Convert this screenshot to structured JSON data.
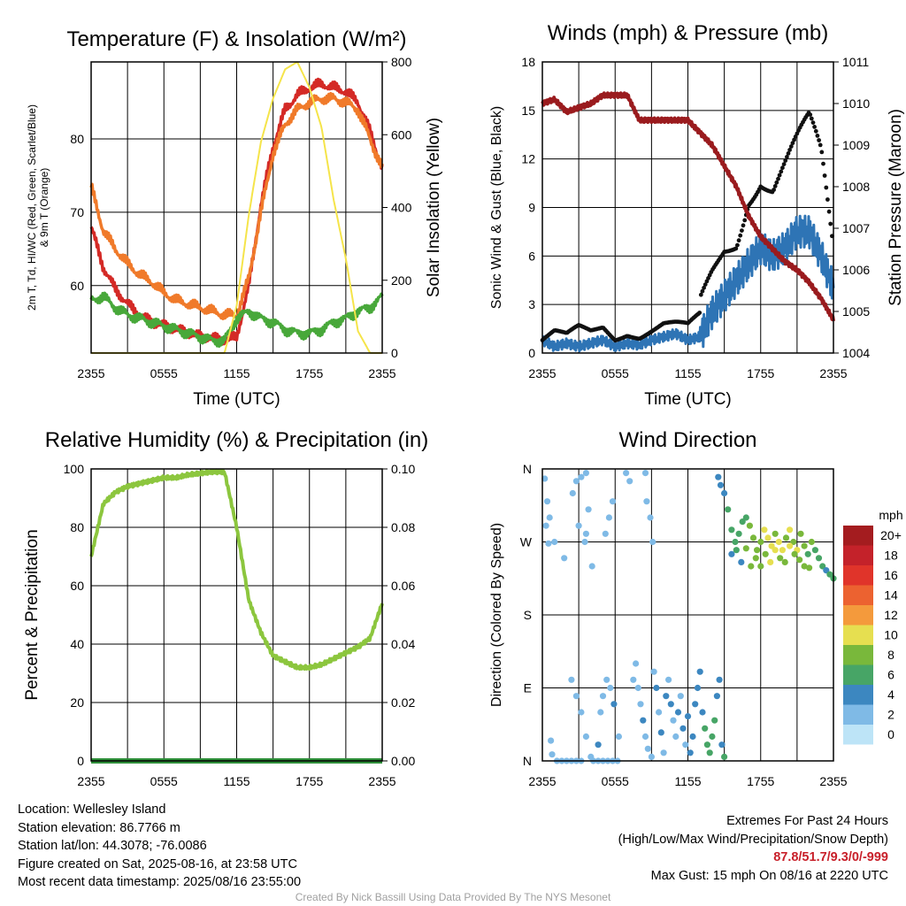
{
  "chart_data": [
    {
      "type": "line",
      "title": "Temperature (F) & Insolation (W/m²)",
      "xlabel": "Time (UTC)",
      "ylabel_left": "2m T, Td, HI/WC (Red, Green, Scarlet/Blue) & 9m T (Orange)",
      "ylabel_right": "Solar Insolation (Yellow)",
      "x_ticks": [
        "2355",
        "0555",
        "1155",
        "1755",
        "2355"
      ],
      "ylim_left": [
        50.8,
        90.5
      ],
      "yticks_left": [
        60,
        70,
        80
      ],
      "ylim_right": [
        0,
        800
      ],
      "yticks_right": [
        0,
        200,
        400,
        600,
        800
      ],
      "grid": true,
      "x_hours": [
        0,
        1,
        2,
        3,
        4,
        5,
        6,
        7,
        8,
        9,
        10,
        11,
        12,
        13,
        14,
        15,
        16,
        17,
        18,
        19,
        20,
        21,
        22,
        23,
        24
      ],
      "series": [
        {
          "color": "#d42a26",
          "axis": "left",
          "values": [
            68,
            62.5,
            59.5,
            57.5,
            56,
            55,
            54.5,
            54,
            53.5,
            53,
            52.8,
            52.5,
            53,
            60,
            71,
            79,
            84,
            86,
            87,
            87.5,
            87,
            86.5,
            85,
            81,
            76
          ]
        },
        {
          "color": "#f07a2a",
          "axis": "left",
          "values": [
            73.5,
            67.5,
            65,
            63,
            61.5,
            60.5,
            59,
            58,
            57.5,
            57,
            56.5,
            56,
            56,
            61,
            70,
            78,
            82,
            84,
            85,
            85.5,
            85.5,
            85,
            84,
            80,
            76
          ]
        },
        {
          "color": "#48a83a",
          "axis": "left",
          "values": [
            58,
            58.5,
            57,
            56,
            55.5,
            55,
            54.5,
            54,
            53.5,
            53,
            52.5,
            52.5,
            55.5,
            56.5,
            55.5,
            55,
            54,
            53.5,
            53.5,
            54,
            55,
            55.5,
            56.5,
            57,
            58.5
          ]
        },
        {
          "color": "#f5e44a",
          "axis": "right",
          "values": [
            0,
            0,
            0,
            0,
            0,
            0,
            0,
            0,
            0,
            0,
            0,
            0,
            130,
            380,
            580,
            700,
            780,
            800,
            730,
            620,
            420,
            260,
            60,
            0,
            0
          ]
        }
      ]
    },
    {
      "type": "scatter",
      "title": "Winds (mph) & Pressure (mb)",
      "xlabel": "Time (UTC)",
      "ylabel_left": "Sonic Wind & Gust (Blue, Black)",
      "ylabel_right": "Station Pressure (Maroon)",
      "x_ticks": [
        "2355",
        "0555",
        "1155",
        "1755",
        "2355"
      ],
      "ylim_left": [
        0,
        18
      ],
      "yticks_left": [
        0,
        3,
        6,
        9,
        12,
        15,
        18
      ],
      "ylim_right": [
        1004,
        1011
      ],
      "yticks_right": [
        1004,
        1005,
        1006,
        1007,
        1008,
        1009,
        1010,
        1011
      ],
      "grid": true,
      "x_hours": [
        0,
        1,
        2,
        3,
        4,
        5,
        6,
        7,
        8,
        9,
        10,
        11,
        12,
        13,
        14,
        15,
        16,
        17,
        18,
        19,
        20,
        21,
        22,
        23,
        24
      ],
      "series": [
        {
          "name": "",
          "kind": "line",
          "color": "#2e74b5",
          "axis": "left",
          "values": [
            0.8,
            0.4,
            0.6,
            0.4,
            0.6,
            0.8,
            0.4,
            0.6,
            0.5,
            0.8,
            1,
            1.2,
            0.8,
            1,
            2.5,
            3.5,
            4.5,
            5.5,
            6.5,
            6,
            6.5,
            7.5,
            7.5,
            6,
            4
          ]
        },
        {
          "name": "",
          "kind": "points",
          "color": "#111111",
          "axis": "left",
          "values": [
            0.8,
            1.2,
            0.9,
            1.4,
            1.2,
            1.6,
            1,
            1.4,
            1.2,
            1.5,
            1.8,
            1.7,
            1.5,
            2.2,
            4.5,
            6.5,
            7.5,
            10.5,
            11.5,
            10.5,
            11.5,
            12.5,
            13.5,
            11.5,
            6
          ]
        },
        {
          "name": "",
          "kind": "line",
          "color": "#9a1b1e",
          "axis": "right",
          "values": [
            1010,
            1010.1,
            1009.8,
            1009.9,
            1010,
            1010.2,
            1010.2,
            1010.2,
            1009.6,
            1009.6,
            1009.6,
            1009.6,
            1009.6,
            1009.3,
            1009,
            1008.5,
            1008,
            1007.3,
            1006.8,
            1006.5,
            1006.2,
            1006,
            1005.7,
            1005.3,
            1004.8
          ]
        }
      ]
    },
    {
      "type": "line",
      "title": "Relative Humidity (%) & Precipitation (in)",
      "xlabel": "",
      "ylabel_left": "Percent & Precipitation",
      "ylabel_right": "",
      "x_ticks": [
        "2355",
        "0555",
        "1155",
        "1755",
        "2355"
      ],
      "ylim_left": [
        0,
        100
      ],
      "yticks_left": [
        0,
        20,
        40,
        60,
        80,
        100
      ],
      "ylim_right": [
        0,
        0.1
      ],
      "yticks_right": [
        "0.00",
        "0.02",
        "0.04",
        "0.06",
        "0.08",
        "0.10"
      ],
      "grid": true,
      "x_hours": [
        0,
        1,
        2,
        3,
        4,
        5,
        6,
        7,
        8,
        9,
        10,
        11,
        12,
        13,
        14,
        15,
        16,
        17,
        18,
        19,
        20,
        21,
        22,
        23,
        24
      ],
      "series": [
        {
          "color": "#8cc63e",
          "axis": "left",
          "values": [
            70,
            88,
            92,
            94,
            95,
            96,
            97,
            97,
            98,
            98.5,
            99,
            99,
            80,
            55,
            44,
            36,
            34,
            32,
            32,
            33,
            35,
            37,
            39,
            42,
            54
          ]
        },
        {
          "color": "#2f8f3a",
          "axis": "left",
          "values": [
            0,
            0,
            0,
            0,
            0,
            0,
            0,
            0,
            0,
            0,
            0,
            0,
            0,
            0,
            0,
            0,
            0,
            0,
            0,
            0,
            0,
            0,
            0,
            0,
            0
          ]
        }
      ]
    },
    {
      "type": "scatter",
      "title": "Wind Direction",
      "xlabel": "",
      "ylabel_left": "Direction (Colored By Speed)",
      "x_ticks": [
        "2355",
        "0555",
        "1155",
        "1755",
        "2355"
      ],
      "y_ticks": [
        "N",
        "E",
        "S",
        "W",
        "N"
      ],
      "ylim_left": [
        0,
        360
      ],
      "grid": true,
      "points": [
        [
          0.2,
          348,
          1
        ],
        [
          0.4,
          320,
          1
        ],
        [
          0.3,
          290,
          1
        ],
        [
          0.6,
          300,
          1
        ],
        [
          0.5,
          268,
          1
        ],
        [
          1.0,
          270,
          1
        ],
        [
          0.7,
          25,
          1
        ],
        [
          0.8,
          8,
          1
        ],
        [
          1.2,
          0,
          1
        ],
        [
          1.6,
          0,
          1
        ],
        [
          2.0,
          0,
          1
        ],
        [
          2.4,
          0,
          1
        ],
        [
          2.8,
          0,
          1
        ],
        [
          3.2,
          0,
          1
        ],
        [
          1.8,
          250,
          1
        ],
        [
          2.5,
          330,
          1
        ],
        [
          2.8,
          345,
          1
        ],
        [
          3.0,
          290,
          1
        ],
        [
          3.2,
          350,
          1
        ],
        [
          3.6,
          355,
          1
        ],
        [
          3.8,
          310,
          1
        ],
        [
          3.5,
          270,
          1
        ],
        [
          3.6,
          280,
          1
        ],
        [
          4.1,
          240,
          1
        ],
        [
          2.4,
          100,
          1
        ],
        [
          2.8,
          80,
          1
        ],
        [
          3.2,
          60,
          1
        ],
        [
          3.6,
          30,
          1
        ],
        [
          4.0,
          5,
          1
        ],
        [
          4.2,
          0,
          1
        ],
        [
          4.6,
          0,
          1
        ],
        [
          5.0,
          0,
          1
        ],
        [
          5.4,
          0,
          1
        ],
        [
          5.8,
          0,
          1
        ],
        [
          6.2,
          0,
          1
        ],
        [
          5.2,
          280,
          1
        ],
        [
          5.5,
          300,
          1
        ],
        [
          5.8,
          320,
          1
        ],
        [
          4.6,
          20,
          2
        ],
        [
          4.8,
          60,
          1
        ],
        [
          5.0,
          80,
          1
        ],
        [
          5.3,
          100,
          1
        ],
        [
          5.6,
          90,
          1
        ],
        [
          5.9,
          70,
          2
        ],
        [
          6.3,
          30,
          1
        ],
        [
          6.9,
          355,
          1
        ],
        [
          7.2,
          345,
          1
        ],
        [
          8.5,
          355,
          1
        ],
        [
          8.6,
          320,
          1
        ],
        [
          8.9,
          300,
          1
        ],
        [
          9.1,
          270,
          1
        ],
        [
          7.5,
          100,
          1
        ],
        [
          7.7,
          120,
          1
        ],
        [
          7.9,
          90,
          1
        ],
        [
          8.1,
          70,
          1
        ],
        [
          8.3,
          50,
          2
        ],
        [
          8.5,
          30,
          1
        ],
        [
          8.7,
          15,
          1
        ],
        [
          9.0,
          5,
          1
        ],
        [
          9.2,
          110,
          1
        ],
        [
          9.4,
          90,
          2
        ],
        [
          9.6,
          60,
          1
        ],
        [
          9.8,
          35,
          2
        ],
        [
          10.0,
          10,
          1
        ],
        [
          10.2,
          80,
          2
        ],
        [
          10.4,
          100,
          1
        ],
        [
          10.6,
          70,
          2
        ],
        [
          10.8,
          50,
          1
        ],
        [
          11.0,
          30,
          1
        ],
        [
          11.2,
          60,
          2
        ],
        [
          11.4,
          80,
          1
        ],
        [
          11.6,
          40,
          2
        ],
        [
          11.8,
          20,
          1
        ],
        [
          12.0,
          55,
          2
        ],
        [
          12.2,
          10,
          2
        ],
        [
          12.4,
          30,
          2
        ],
        [
          12.6,
          70,
          2
        ],
        [
          12.8,
          90,
          2
        ],
        [
          13.0,
          110,
          2
        ],
        [
          13.2,
          60,
          2
        ],
        [
          13.4,
          40,
          3
        ],
        [
          13.6,
          20,
          3
        ],
        [
          13.8,
          10,
          3
        ],
        [
          14.0,
          30,
          3
        ],
        [
          14.2,
          50,
          3
        ],
        [
          14.4,
          80,
          2
        ],
        [
          14.6,
          100,
          2
        ],
        [
          14.8,
          20,
          2
        ],
        [
          15.0,
          5,
          3
        ],
        [
          14.5,
          350,
          2
        ],
        [
          14.7,
          340,
          2
        ],
        [
          15.0,
          330,
          2
        ],
        [
          15.3,
          310,
          3
        ],
        [
          15.6,
          285,
          3
        ],
        [
          15.9,
          270,
          3
        ],
        [
          16.2,
          280,
          3
        ],
        [
          16.5,
          295,
          3
        ],
        [
          16.8,
          300,
          3
        ],
        [
          17.1,
          290,
          4
        ],
        [
          17.4,
          275,
          4
        ],
        [
          17.7,
          260,
          4
        ],
        [
          18.0,
          270,
          4
        ],
        [
          18.3,
          285,
          5
        ],
        [
          18.6,
          275,
          5
        ],
        [
          18.9,
          265,
          5
        ],
        [
          19.2,
          280,
          4
        ],
        [
          19.5,
          270,
          5
        ],
        [
          19.8,
          260,
          5
        ],
        [
          20.1,
          275,
          4
        ],
        [
          20.4,
          285,
          5
        ],
        [
          20.7,
          270,
          4
        ],
        [
          21.0,
          260,
          5
        ],
        [
          21.3,
          280,
          4
        ],
        [
          21.6,
          265,
          4
        ],
        [
          21.9,
          255,
          3
        ],
        [
          22.2,
          270,
          4
        ],
        [
          22.5,
          260,
          3
        ],
        [
          22.8,
          250,
          3
        ],
        [
          23.1,
          240,
          3
        ],
        [
          23.4,
          235,
          2
        ],
        [
          23.7,
          230,
          3
        ],
        [
          24.0,
          225,
          3
        ],
        [
          15.6,
          255,
          2
        ],
        [
          16.0,
          260,
          3
        ],
        [
          16.4,
          245,
          2
        ],
        [
          16.8,
          262,
          4
        ],
        [
          17.2,
          240,
          4
        ],
        [
          17.6,
          250,
          4
        ],
        [
          18.0,
          240,
          4
        ],
        [
          18.4,
          255,
          4
        ],
        [
          18.8,
          245,
          5
        ],
        [
          19.2,
          260,
          5
        ],
        [
          19.6,
          250,
          4
        ],
        [
          20.0,
          245,
          4
        ],
        [
          20.4,
          265,
          5
        ],
        [
          20.8,
          255,
          4
        ],
        [
          21.2,
          248,
          4
        ],
        [
          21.6,
          240,
          4
        ],
        [
          22.0,
          238,
          4
        ]
      ],
      "legend": {
        "unit": "mph",
        "labels": [
          "20+",
          "18",
          "16",
          "14",
          "12",
          "10",
          "8",
          "6",
          "4",
          "2",
          "0"
        ],
        "colors": [
          "#a41c1f",
          "#c4222a",
          "#e0342a",
          "#ec6230",
          "#f49a3c",
          "#e6df50",
          "#79b83b",
          "#47a566",
          "#3c87c0",
          "#7fbae6",
          "#bde4f7"
        ]
      }
    }
  ],
  "info_left": [
    "Location: Wellesley Island",
    "Station elevation: 86.7766 m",
    "Station lat/lon: 44.3078; -76.0086",
    "Figure created on Sat, 2025-08-16, at 23:58 UTC",
    "Most recent data timestamp: 2025/08/16 23:55:00"
  ],
  "extremes": {
    "heading": "Extremes For Past 24 Hours",
    "subheading": "(High/Low/Max Wind/Precipitation/Snow Depth)",
    "values": "87.8/51.7/9.3/0/-999",
    "max_gust": "Max Gust: 15 mph On 08/16 at 2220 UTC"
  },
  "credit": "Created By Nick Bassill Using Data Provided By The NYS Mesonet"
}
